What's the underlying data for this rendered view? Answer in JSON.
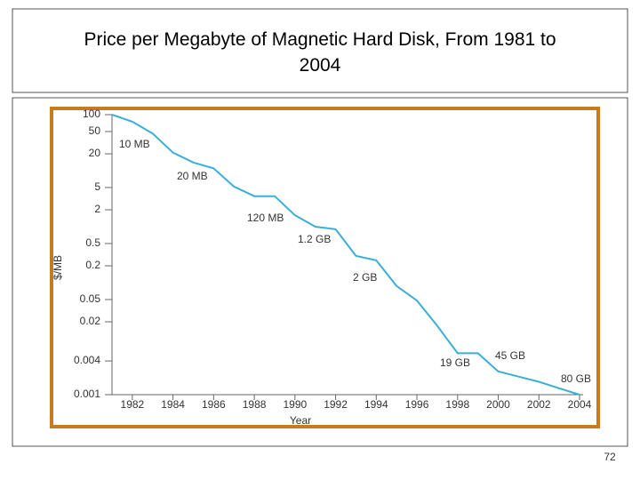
{
  "chart_data": {
    "type": "line",
    "title": "Price per Megabyte of Magnetic Hard Disk, From 1981 to 2004",
    "x_label": "Year",
    "y_label": "$/MB",
    "x": [
      1981,
      1982,
      1983,
      1984,
      1985,
      1986,
      1987,
      1988,
      1989,
      1990,
      1991,
      1992,
      1993,
      1994,
      1995,
      1996,
      1997,
      1998,
      1999,
      2000,
      2001,
      2002,
      2003,
      2004
    ],
    "series": [
      {
        "name": "Price",
        "color": "#3aaed8",
        "values": [
          100,
          75,
          46,
          21,
          14,
          11,
          5.2,
          3.5,
          3.5,
          1.6,
          1.0,
          0.9,
          0.3,
          0.25,
          0.087,
          0.048,
          0.017,
          0.0055,
          0.0055,
          0.0026,
          0.0021,
          0.0017,
          0.0013,
          0.001
        ]
      }
    ],
    "xlim": [
      1981,
      2004
    ],
    "xticks": [
      1982,
      1984,
      1986,
      1988,
      1990,
      1992,
      1994,
      1996,
      1998,
      2000,
      2002,
      2004
    ],
    "ylim": [
      0.001,
      100
    ],
    "yticks": [
      100,
      50,
      20,
      5,
      2,
      0.5,
      0.2,
      0.05,
      0.02,
      0.004,
      0.001
    ],
    "log_y": true,
    "annotations": [
      "10 MB",
      "20 MB",
      "120 MB",
      "1.2 GB",
      "2 GB",
      "19 GB",
      "45 GB",
      "80 GB"
    ]
  },
  "page_number": "72"
}
